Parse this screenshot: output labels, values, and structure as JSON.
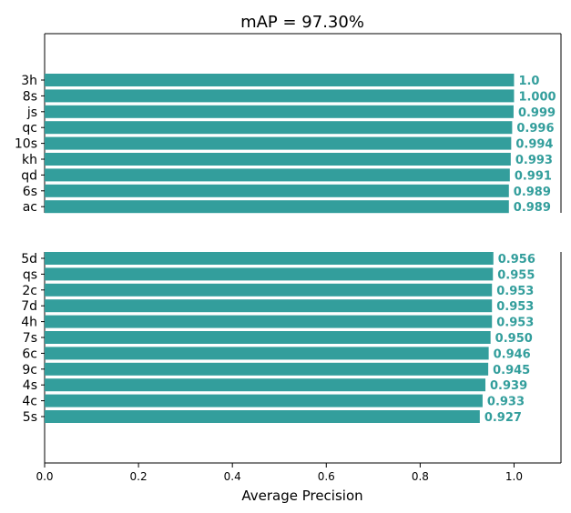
{
  "chart_data": {
    "type": "bar",
    "orientation": "horizontal",
    "title": "mAP = 97.30%",
    "xlabel": "Average Precision",
    "xlim": [
      0,
      1.1
    ],
    "xticks": [
      "0.0",
      "0.2",
      "0.4",
      "0.6",
      "0.8",
      "1.0"
    ],
    "bar_color": "#339e9c",
    "label_color": "#339e9c",
    "broken_axis": true,
    "top_panel": {
      "categories": [
        "3h",
        "8s",
        "js",
        "qc",
        "10s",
        "kh",
        "qd",
        "6s",
        "ac"
      ],
      "values": [
        1.0,
        1.0,
        0.999,
        0.996,
        0.994,
        0.993,
        0.991,
        0.989,
        0.989
      ],
      "labels": [
        "1.0",
        "1.000",
        "0.999",
        "0.996",
        "0.994",
        "0.993",
        "0.991",
        "0.989",
        "0.989"
      ]
    },
    "bottom_panel": {
      "categories": [
        "5d",
        "qs",
        "2c",
        "7d",
        "4h",
        "7s",
        "6c",
        "9c",
        "4s",
        "4c",
        "5s"
      ],
      "values": [
        0.956,
        0.955,
        0.953,
        0.953,
        0.953,
        0.95,
        0.946,
        0.945,
        0.939,
        0.933,
        0.927
      ],
      "labels": [
        "0.956",
        "0.955",
        "0.953",
        "0.953",
        "0.953",
        "0.950",
        "0.946",
        "0.945",
        "0.939",
        "0.933",
        "0.927"
      ]
    }
  }
}
